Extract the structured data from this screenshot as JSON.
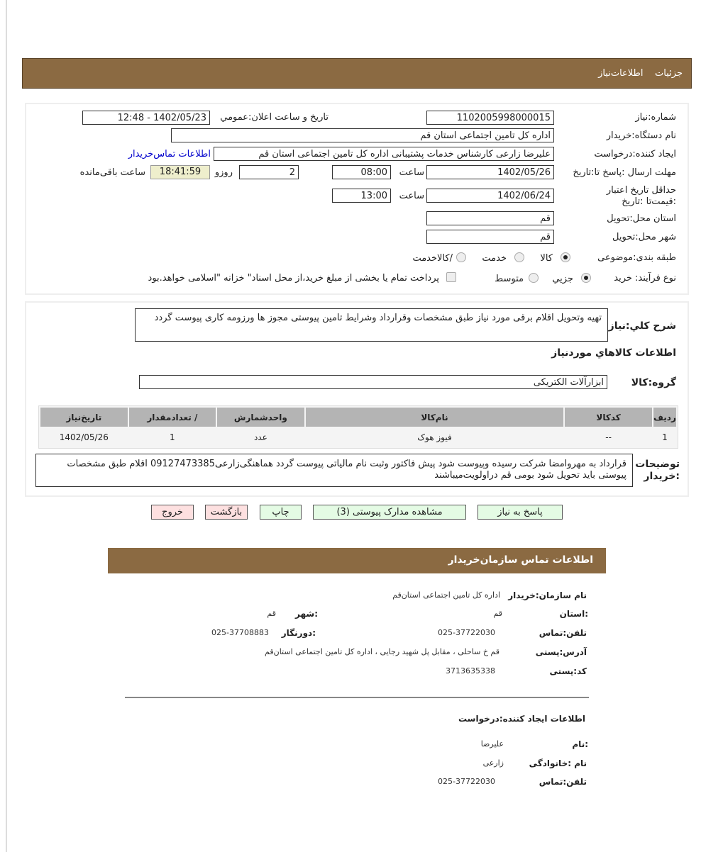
{
  "header": {
    "tab_details": "جزئیات",
    "tab_info": "اطلاعات‌نیاز"
  },
  "form": {
    "need_number_label": "شماره:نیاز",
    "need_number": "1102005998000015",
    "announce_label": "تاریخ و ساعت اعلان:عمومي",
    "announce_value": "1402/05/23 - 12:48",
    "buyer_label": "نام دستگاه:خریدار",
    "buyer": "اداره کل تامین اجتماعی استان قم",
    "creator_label": "ایجاد کننده:درخواست",
    "creator": "علیرضا زارعی کارشناس خدمات پشتیبانی  اداره کل تامین اجتماعی استان قم",
    "contact_link": "اطلاعات تماس‌خریدار",
    "deadline_label": "مهلت ارسال :پاسخ تا:تاریخ",
    "deadline_date": "1402/05/26",
    "hour_label": "ساعت",
    "deadline_time": "08:00",
    "days": "2",
    "days_label": "روزو",
    "remaining": "18:41:59",
    "remaining_label": "ساعت باقی‌مانده",
    "validity_label": "حداقل تاریخ اعتبار :قیمت‌تا :تاریخ",
    "validity_date": "1402/06/24",
    "validity_time": "13:00",
    "province_label": "استان محل:تحویل",
    "province": "قم",
    "city_label": "شهر محل:تحویل",
    "city": "قم",
    "category_label": "طبقه بندی:موضوعی",
    "category_options": [
      "کالا",
      "خدمت",
      "/کالاخدمت"
    ],
    "category_selected": "کالا",
    "process_label": "نوع فرآیند: خرید",
    "process_options": [
      "جزيي",
      "متوسط"
    ],
    "process_selected": "جزيي",
    "treasury_text": "پرداخت تمام یا بخشی از مبلغ خرید،از محل اسناد\" خزانه \"اسلامی خواهد.بود"
  },
  "description": {
    "label": "شرح کلي:نیاز",
    "text": "تهیه وتحویل اقلام برقی مورد نیاز طبق مشخصات وقرارداد وشرایط تامین پیوستی مجوز ها ورزومه کاری پیوست گردد"
  },
  "goods": {
    "title": "اطلاعات کالاهاي موردنیاز",
    "group_label": "گروه:کالا",
    "group": "ابزارآلات الکتریکی",
    "columns": [
      "ردیف",
      "کدکالا",
      "نام‌کالا",
      "واحدشمارش",
      "/ تعدادمقدار",
      "تاریخ‌نیاز"
    ],
    "rows": [
      [
        "1",
        "--",
        "فیوز هوک",
        "عدد",
        "1",
        "1402/05/26"
      ]
    ]
  },
  "notes": {
    "label": "توضیحات :خریدار",
    "text": "قرارداد به مهروامضا شرکت رسیده وپیوست شود پیش فاکتور وثبت نام مالیاتی پیوست گردد هماهنگی‌زارعی09127473385 اقلام طبق مشخصات پیوستی باید تحویل شود بومی قم دراولویت‌میباشند"
  },
  "buttons": {
    "reply": "پاسخ به نیاز",
    "attachments": "مشاهده مدارک پیوستی (3)",
    "print": "چاپ",
    "back": "بازگشت",
    "exit": "خروج"
  },
  "contact": {
    "title": "اطلاعات  تماس سازمان‌خریدار",
    "org_label": "نام سازمان:خریدار",
    "org": "اداره کل تامین اجتماعی استان‌قم",
    "province_label": ":استان",
    "province": "قم",
    "city_label": ":شهر",
    "city": "قم",
    "phone_label": "تلفن:تماس",
    "phone": "025-37722030",
    "fax_label": ":دورنگار",
    "fax": "025-37708883",
    "address_label": "آدرس:پستی",
    "address": "قم خ ساحلی ، مقابل پل  شهید رجایی ، اداره کل تامین اجتماعی  استان‌قم",
    "postal_label": "کد:پستی",
    "postal": "3713635338",
    "creator_title": "اطلاعات  ایجاد کننده:درخواست",
    "name_label": ":نام",
    "name": "علیرضا",
    "family_label": "نام :خانوادگی",
    "family": "زارعی",
    "creator_phone_label": "تلفن:تماس",
    "creator_phone": "025-37722030"
  },
  "colors": {
    "header": "#8b6a42",
    "green_button": "#e4fbe4",
    "pink_button": "#fde0e0",
    "timer": "#eeeecc"
  }
}
